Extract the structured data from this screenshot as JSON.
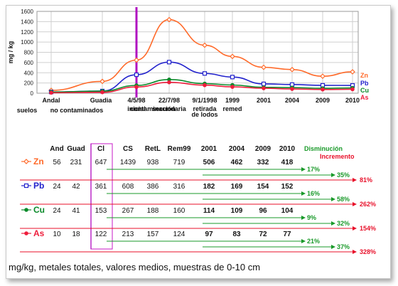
{
  "chart_data": {
    "type": "line",
    "ylabel": "mg / kg",
    "ylim": [
      0,
      1600
    ],
    "yticks": [
      0,
      200,
      400,
      600,
      800,
      1000,
      1200,
      1400,
      1600
    ],
    "grid": true,
    "vertical_marker_category": "4/5/98",
    "x_tick_labels": [
      {
        "top": "Andal",
        "bottom": ""
      },
      {
        "top": "Guadia",
        "bottom": ""
      },
      {
        "top": "4/5/98",
        "bottom": "inicial"
      },
      {
        "top": "22/7/98",
        "bottom": "secundaria"
      },
      {
        "top": "9/1/1998",
        "bottom": "retirada\nde lodos"
      },
      {
        "top": "1999",
        "bottom": "remed"
      },
      {
        "top": "2001",
        "bottom": ""
      },
      {
        "top": "2004",
        "bottom": ""
      },
      {
        "top": "2009",
        "bottom": ""
      },
      {
        "top": "2010",
        "bottom": ""
      }
    ],
    "group_labels": [
      "suelos",
      "no contaminados",
      "contaminación"
    ],
    "series": [
      {
        "name": "Zn",
        "color": "#ff6a2a",
        "marker": "diamond",
        "values": [
          56,
          231,
          647,
          1439,
          938,
          719,
          506,
          462,
          332,
          418
        ]
      },
      {
        "name": "Pb",
        "color": "#2222cc",
        "marker": "square",
        "values": [
          24,
          42,
          361,
          608,
          386,
          316,
          182,
          169,
          154,
          152
        ]
      },
      {
        "name": "Cu",
        "color": "#0a8a2a",
        "marker": "circle",
        "values": [
          24,
          41,
          153,
          267,
          188,
          160,
          114,
          109,
          96,
          104
        ]
      },
      {
        "name": "As",
        "color": "#ee1e3c",
        "marker": "circle",
        "values": [
          10,
          18,
          122,
          213,
          157,
          124,
          97,
          83,
          72,
          77
        ]
      }
    ]
  },
  "table": {
    "columns": [
      "And",
      "Guad",
      "Cl",
      "CS",
      "RetL",
      "Rem99",
      "2001",
      "2004",
      "2009",
      "2010"
    ],
    "legend_disminucion": "Disminución",
    "legend_incremento": "Incremento",
    "rows": [
      {
        "label": "Zn",
        "color": "#ff6a2a",
        "marker": "diamond",
        "values": [
          "56",
          "231",
          "647",
          "1439",
          "938",
          "719",
          "506",
          "462",
          "332",
          "418"
        ],
        "dec1": "17%",
        "dec2": "35%",
        "inc": "81%"
      },
      {
        "label": "Pb",
        "color": "#2222cc",
        "marker": "square",
        "values": [
          "24",
          "42",
          "361",
          "608",
          "386",
          "316",
          "182",
          "169",
          "154",
          "152"
        ],
        "dec1": "16%",
        "dec2": "58%",
        "inc": "262%"
      },
      {
        "label": "Cu",
        "color": "#0a8a2a",
        "marker": "circle",
        "values": [
          "24",
          "41",
          "153",
          "267",
          "188",
          "160",
          "114",
          "109",
          "96",
          "104"
        ],
        "dec1": "9%",
        "dec2": "32%",
        "inc": "154%"
      },
      {
        "label": "As",
        "color": "#ee1e3c",
        "marker": "circle",
        "values": [
          "10",
          "18",
          "122",
          "213",
          "157",
          "124",
          "97",
          "83",
          "72",
          "77"
        ],
        "dec1": "21%",
        "dec2": "37%",
        "inc": "328%"
      }
    ]
  },
  "colors": {
    "decrease": "#1a9a2a",
    "increase": "#e8102a",
    "marker_line": "#b010c0",
    "highlight_box": "#d040d0"
  },
  "caption": "mg/kg, metales totales, valores medios, muestras de 0-10 cm"
}
